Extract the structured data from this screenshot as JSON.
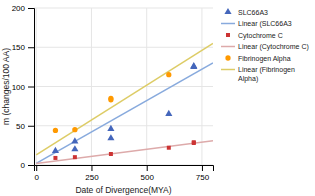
{
  "chart_data": {
    "type": "scatter",
    "xlabel": "Date of Divergence(MYA)",
    "ylabel": "m (changes/100 AA)",
    "xlim": [
      -10,
      800
    ],
    "ylim": [
      0,
      200
    ],
    "xticks": [
      0,
      250,
      500,
      750
    ],
    "yticks": [
      0,
      50,
      100,
      150,
      200
    ],
    "grid": true,
    "series": [
      {
        "name": "SLC66A3",
        "type": "scatter",
        "marker": "triangle",
        "color": "#4466bb",
        "x": [
          87,
          175,
          175,
          338,
          338,
          600,
          713,
          713
        ],
        "values": [
          18,
          20,
          30,
          34,
          46,
          65,
          125,
          126
        ]
      },
      {
        "name": "Linear (SLC66A3",
        "type": "line",
        "color": "#88aadd",
        "x": [
          0,
          800
        ],
        "values": [
          2,
          130
        ]
      },
      {
        "name": "Cytochrome C",
        "type": "scatter",
        "marker": "square",
        "color": "#cc3333",
        "x": [
          87,
          175,
          338,
          600,
          713,
          713
        ],
        "values": [
          9,
          10,
          14,
          22,
          28,
          29
        ]
      },
      {
        "name": "Linear (Cytochrome C)",
        "type": "line",
        "color": "#ddaaaa",
        "x": [
          0,
          800
        ],
        "values": [
          2,
          31
        ]
      },
      {
        "name": "Fibrinogen Alpha",
        "type": "scatter",
        "marker": "circle",
        "color": "#ff9900",
        "x": [
          87,
          175,
          338,
          338,
          600
        ],
        "values": [
          44,
          45,
          83,
          85,
          115
        ]
      },
      {
        "name": "Linear (Fibrinogen\nAlpha)",
        "type": "line",
        "color": "#ddcc66",
        "x": [
          0,
          800
        ],
        "values": [
          13,
          155
        ]
      }
    ]
  }
}
